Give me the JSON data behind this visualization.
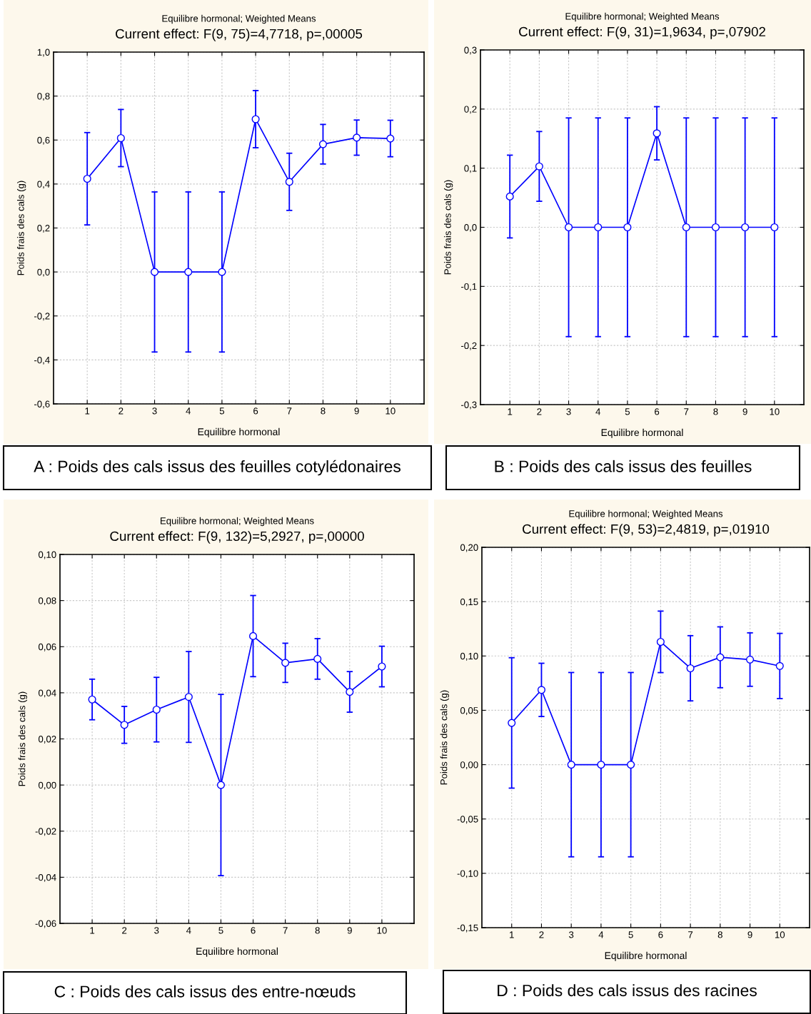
{
  "chart_data": [
    {
      "type": "line",
      "title": "Equilibre hormonal; Weighted Means",
      "subtitle": "Current effect: F(9, 75)=4,7718, p=,00005",
      "xlabel": "Equilibre hormonal",
      "ylabel": "Poids frais des cals (g)",
      "categories": [
        "1",
        "2",
        "3",
        "4",
        "5",
        "6",
        "7",
        "8",
        "9",
        "10"
      ],
      "series": [
        {
          "color": "#0000ff",
          "values": [
            0.424,
            0.609,
            0,
            0,
            0,
            0.695,
            0.41,
            0.581,
            0.611,
            0.607
          ],
          "errors": [
            0.21,
            0.13,
            0.364,
            0.364,
            0.364,
            0.13,
            0.13,
            0.09,
            0.08,
            0.083
          ]
        }
      ],
      "ylim": [
        -0.6,
        1.0
      ],
      "yticks": [
        {
          "value": -0.6,
          "label": "-0,6"
        },
        {
          "value": -0.4,
          "label": "-0,4"
        },
        {
          "value": -0.2,
          "label": "-0,2"
        },
        {
          "value": 0,
          "label": "0,0"
        },
        {
          "value": 0.2,
          "label": "0,2"
        },
        {
          "value": 0.4,
          "label": "0,4"
        },
        {
          "value": 0.6,
          "label": "0,6"
        },
        {
          "value": 0.8,
          "label": "0,8"
        },
        {
          "value": 1.0,
          "label": "1,0"
        }
      ],
      "grid": true,
      "marker": "circle",
      "line_style": "solid",
      "annotations": [
        "A : Poids des cals issus des feuilles cotylédonaires"
      ]
    },
    {
      "type": "line",
      "title": "Equilibre hormonal; Weighted Means",
      "subtitle": "Current effect: F(9, 31)=1,9634, p=,07902",
      "xlabel": "Equilibre hormonal",
      "ylabel": "Poids frais des cals (g)",
      "categories": [
        "1",
        "2",
        "3",
        "4",
        "5",
        "6",
        "7",
        "8",
        "9",
        "10"
      ],
      "series": [
        {
          "color": "#0000ff",
          "values": [
            0.052,
            0.103,
            0,
            0,
            0,
            0.159,
            0,
            0,
            0,
            0
          ],
          "errors": [
            0.07,
            0.059,
            0.185,
            0.185,
            0.185,
            0.045,
            0.185,
            0.185,
            0.185,
            0.185
          ]
        }
      ],
      "ylim": [
        -0.3,
        0.3
      ],
      "yticks": [
        {
          "value": -0.3,
          "label": "-0,3"
        },
        {
          "value": -0.2,
          "label": "-0,2"
        },
        {
          "value": -0.1,
          "label": "-0,1"
        },
        {
          "value": 0,
          "label": "0,0"
        },
        {
          "value": 0.1,
          "label": "0,1"
        },
        {
          "value": 0.2,
          "label": "0,2"
        },
        {
          "value": 0.3,
          "label": "0,3"
        }
      ],
      "grid": true,
      "marker": "circle",
      "line_style": "solid",
      "annotations": [
        "B : Poids des cals issus des feuilles"
      ]
    },
    {
      "type": "line",
      "title": "Equilibre hormonal; Weighted Means",
      "subtitle": "Current effect: F(9, 132)=5,2927, p=,00000",
      "xlabel": "Equilibre hormonal",
      "ylabel": "Poids frais des cals (g)",
      "categories": [
        "1",
        "2",
        "3",
        "4",
        "5",
        "6",
        "7",
        "8",
        "9",
        "10"
      ],
      "series": [
        {
          "color": "#0000ff",
          "values": [
            0.0371,
            0.0261,
            0.0327,
            0.0382,
            0,
            0.0646,
            0.053,
            0.0547,
            0.0404,
            0.0514
          ],
          "errors": [
            0.0088,
            0.008,
            0.014,
            0.0197,
            0.0393,
            0.0176,
            0.0085,
            0.0088,
            0.0088,
            0.0088
          ]
        }
      ],
      "ylim": [
        -0.06,
        0.1
      ],
      "yticks": [
        {
          "value": -0.06,
          "label": "-0,06"
        },
        {
          "value": -0.04,
          "label": "-0,04"
        },
        {
          "value": -0.02,
          "label": "-0,02"
        },
        {
          "value": 0,
          "label": "0,00"
        },
        {
          "value": 0.02,
          "label": "0,02"
        },
        {
          "value": 0.04,
          "label": "0,04"
        },
        {
          "value": 0.06,
          "label": "0,06"
        },
        {
          "value": 0.08,
          "label": "0,08"
        },
        {
          "value": 0.1,
          "label": "0,10"
        }
      ],
      "grid": true,
      "marker": "circle",
      "line_style": "solid",
      "annotations": [
        "C : Poids des cals issus des entre-nœuds"
      ]
    },
    {
      "type": "line",
      "title": "Equilibre hormonal; Weighted Means",
      "subtitle": "Current effect: F(9, 53)=2,4819, p=,01910",
      "xlabel": "Equilibre hormonal",
      "ylabel": "Poids frais des cals (g)",
      "categories": [
        "1",
        "2",
        "3",
        "4",
        "5",
        "6",
        "7",
        "8",
        "9",
        "10"
      ],
      "series": [
        {
          "color": "#0000ff",
          "values": [
            0.0384,
            0.0688,
            0,
            0,
            0,
            0.113,
            0.0887,
            0.0988,
            0.0967,
            0.0908
          ],
          "errors": [
            0.06,
            0.0245,
            0.0848,
            0.0848,
            0.0848,
            0.0283,
            0.03,
            0.028,
            0.0246,
            0.03
          ]
        }
      ],
      "ylim": [
        -0.15,
        0.2
      ],
      "yticks": [
        {
          "value": -0.15,
          "label": "-0,15"
        },
        {
          "value": -0.1,
          "label": "-0,10"
        },
        {
          "value": -0.05,
          "label": "-0,05"
        },
        {
          "value": 0,
          "label": "0,00"
        },
        {
          "value": 0.05,
          "label": "0,05"
        },
        {
          "value": 0.1,
          "label": "0,10"
        },
        {
          "value": 0.15,
          "label": "0,15"
        },
        {
          "value": 0.2,
          "label": "0,20"
        }
      ],
      "grid": true,
      "marker": "circle",
      "line_style": "solid",
      "annotations": [
        "D : Poids des cals issus des racines"
      ]
    }
  ]
}
